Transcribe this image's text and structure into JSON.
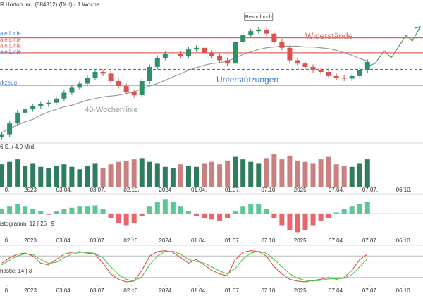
{
  "chart_data": [
    {
      "type": "candlestick",
      "title": "R.Horton Inc. (884312) (DHI) - 1 Woche",
      "tool_label": "rkzeug",
      "record_label": "Rekordhoch",
      "resistance_label": "Widerstände",
      "support_label": "Unterstützungen",
      "level_labels": [
        {
          "text": "ale Linie",
          "color": "#4a7fd0"
        },
        {
          "text": "ale Linie",
          "color": "#e06666"
        },
        {
          "text": "ale Linie",
          "color": "#e06666"
        },
        {
          "text": "ale Linie",
          "color": "#4a7fd0"
        }
      ],
      "levels": [
        {
          "value": 185,
          "color": "#e06666",
          "dashed": false
        },
        {
          "value": 167,
          "color": "#e06666",
          "dashed": false
        },
        {
          "value": 147,
          "color": "#3a78c9",
          "dashed": true
        },
        {
          "value": 128,
          "color": "#3a78c9",
          "dashed": false
        }
      ],
      "up_color": "#2f8f68",
      "down_color": "#d9534f",
      "x": [
        -11,
        -8,
        -5,
        -2,
        1,
        4,
        7,
        10,
        13,
        16,
        19,
        22,
        25,
        28,
        31,
        34,
        37,
        40,
        43,
        46,
        49,
        52,
        55,
        58,
        61,
        64,
        67,
        70,
        73,
        76,
        79,
        82,
        85,
        88,
        91,
        94,
        97,
        100,
        103,
        106,
        109,
        112,
        115,
        118,
        121,
        124,
        127,
        130
      ],
      "open": [
        66,
        69,
        82,
        95,
        99,
        103,
        105,
        107,
        112,
        119,
        125,
        130,
        137,
        144,
        142,
        133,
        127,
        120,
        116,
        133,
        150,
        161,
        166,
        166,
        163,
        171,
        173,
        167,
        163,
        158,
        154,
        180,
        188,
        193,
        195,
        190,
        180,
        173,
        158,
        154,
        150,
        146,
        144,
        139,
        137,
        136,
        139,
        146
      ],
      "high": [
        72,
        85,
        98,
        102,
        106,
        108,
        110,
        115,
        122,
        128,
        133,
        140,
        147,
        147,
        145,
        136,
        130,
        123,
        136,
        153,
        164,
        169,
        169,
        169,
        174,
        176,
        176,
        170,
        166,
        161,
        183,
        191,
        196,
        198,
        198,
        193,
        183,
        176,
        161,
        157,
        153,
        149,
        147,
        142,
        140,
        142,
        149,
        159
      ],
      "low": [
        63,
        66,
        79,
        92,
        96,
        100,
        102,
        104,
        109,
        116,
        122,
        127,
        134,
        139,
        130,
        124,
        117,
        113,
        113,
        130,
        147,
        158,
        163,
        160,
        160,
        168,
        164,
        160,
        155,
        151,
        151,
        177,
        185,
        190,
        187,
        177,
        170,
        155,
        151,
        147,
        143,
        141,
        136,
        134,
        133,
        133,
        136,
        143
      ],
      "close": [
        69,
        82,
        95,
        99,
        103,
        105,
        107,
        112,
        119,
        125,
        130,
        137,
        144,
        142,
        133,
        127,
        120,
        116,
        133,
        150,
        161,
        166,
        166,
        163,
        171,
        173,
        167,
        163,
        158,
        154,
        180,
        188,
        193,
        195,
        190,
        180,
        173,
        158,
        154,
        150,
        146,
        144,
        139,
        137,
        136,
        139,
        146,
        156
      ],
      "series": [
        {
          "name": "40-Wochenlinie",
          "color": "#9a9a9a",
          "values": [
            71,
            76,
            80,
            84,
            87,
            92,
            96,
            99,
            102,
            104,
            107,
            110,
            112,
            114,
            115,
            116,
            118,
            120,
            124,
            127,
            130,
            134,
            138,
            142,
            146,
            149,
            152,
            154,
            155,
            157,
            161,
            165,
            168,
            171,
            173,
            174,
            175,
            175,
            175,
            174,
            174,
            173,
            172,
            170,
            167,
            164,
            160,
            157
          ]
        }
      ],
      "xlim": [
        -11.7,
        151.4
      ],
      "ylim": [
        61,
        205
      ],
      "xticks": [
        {
          "value": -9,
          "label": "0."
        },
        {
          "value": 0,
          "label": "2023"
        },
        {
          "value": 13,
          "label": "03.04."
        },
        {
          "value": 26,
          "label": "03.07."
        },
        {
          "value": 39,
          "label": "02.10."
        },
        {
          "value": 52,
          "label": "2024"
        },
        {
          "value": 65,
          "label": "01.04."
        },
        {
          "value": 78,
          "label": "01.07."
        },
        {
          "value": 92,
          "label": "07.10."
        },
        {
          "value": 104,
          "label": "2025"
        },
        {
          "value": 118,
          "label": "07.04."
        },
        {
          "value": 131,
          "label": "07.07."
        },
        {
          "value": 144,
          "label": "06.10."
        }
      ]
    },
    {
      "type": "bar",
      "label": "6 S. / 4,0 Mrd.",
      "values": [
        18,
        20,
        22,
        17,
        19,
        16,
        15,
        17,
        18,
        16,
        14,
        17,
        19,
        15,
        18,
        20,
        21,
        22,
        23,
        20,
        19,
        16,
        15,
        18,
        17,
        16,
        19,
        20,
        18,
        21,
        24,
        22,
        20,
        19,
        23,
        26,
        22,
        25,
        21,
        20,
        19,
        22,
        24,
        18,
        17,
        16,
        19,
        22
      ],
      "up_color": "#2e7d5e",
      "down_color": "#c98080",
      "ylim": [
        0,
        30
      ]
    },
    {
      "type": "bar",
      "label": "istogramm: 12 | 26 | 9",
      "values": [
        2,
        3,
        4,
        3,
        2,
        1,
        -0.5,
        1,
        2,
        2.5,
        3,
        3,
        3.5,
        2,
        -2,
        -4,
        -5,
        -4,
        -1,
        3,
        5,
        6,
        5,
        3,
        1,
        -1,
        -2,
        -2.5,
        -3,
        -2,
        1,
        3,
        4,
        4,
        2,
        -2,
        -5,
        -7,
        -8,
        -7,
        -5,
        -3,
        -2,
        0.5,
        2,
        3,
        4,
        5
      ],
      "up_color": "#5cc796",
      "down_color": "#e8666b",
      "ylim": [
        -10,
        7
      ]
    },
    {
      "type": "line",
      "label": "hastic: 14 | 3",
      "series": [
        {
          "color": "#e04b4b",
          "values": [
            60,
            75,
            85,
            88,
            80,
            60,
            55,
            70,
            85,
            90,
            92,
            88,
            85,
            60,
            30,
            15,
            8,
            10,
            40,
            80,
            92,
            95,
            90,
            75,
            60,
            70,
            55,
            40,
            30,
            25,
            70,
            90,
            95,
            92,
            80,
            50,
            30,
            15,
            10,
            8,
            12,
            15,
            20,
            15,
            20,
            40,
            70,
            85
          ]
        },
        {
          "color": "#4cc74c",
          "values": [
            55,
            68,
            80,
            86,
            84,
            70,
            60,
            62,
            75,
            85,
            90,
            90,
            87,
            75,
            50,
            28,
            15,
            10,
            22,
            55,
            80,
            92,
            93,
            85,
            70,
            65,
            60,
            50,
            38,
            30,
            45,
            72,
            88,
            93,
            88,
            70,
            50,
            30,
            18,
            12,
            10,
            12,
            16,
            17,
            18,
            28,
            50,
            72
          ]
        }
      ],
      "guides": [
        20,
        80
      ],
      "ylim": [
        0,
        100
      ]
    }
  ]
}
